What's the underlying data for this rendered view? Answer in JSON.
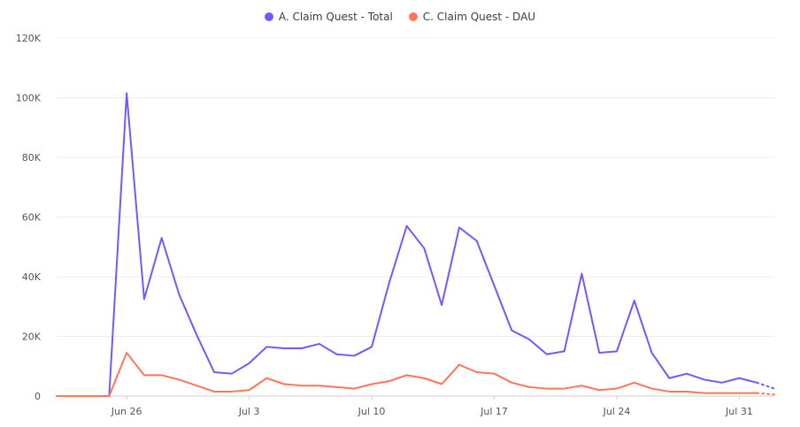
{
  "chart_data": {
    "type": "line",
    "title": "",
    "xlabel": "",
    "ylabel": "",
    "ylim": [
      0,
      120000
    ],
    "y_ticks": [
      0,
      20000,
      40000,
      60000,
      80000,
      100000,
      120000
    ],
    "y_tick_labels": [
      "0",
      "20K",
      "40K",
      "60K",
      "80K",
      "100K",
      "120K"
    ],
    "x_tick_labels": [
      "Jun 26",
      "Jul 3",
      "Jul 10",
      "Jul 17",
      "Jul 24",
      "Jul 31"
    ],
    "x_tick_dates": [
      "2023-06-26",
      "2023-07-03",
      "2023-07-10",
      "2023-07-17",
      "2023-07-24",
      "2023-07-31"
    ],
    "x": [
      "2023-06-22",
      "2023-06-23",
      "2023-06-24",
      "2023-06-25",
      "2023-06-26",
      "2023-06-27",
      "2023-06-28",
      "2023-06-29",
      "2023-06-30",
      "2023-07-01",
      "2023-07-02",
      "2023-07-03",
      "2023-07-04",
      "2023-07-05",
      "2023-07-06",
      "2023-07-07",
      "2023-07-08",
      "2023-07-09",
      "2023-07-10",
      "2023-07-11",
      "2023-07-12",
      "2023-07-13",
      "2023-07-14",
      "2023-07-15",
      "2023-07-16",
      "2023-07-17",
      "2023-07-18",
      "2023-07-19",
      "2023-07-20",
      "2023-07-21",
      "2023-07-22",
      "2023-07-23",
      "2023-07-24",
      "2023-07-25",
      "2023-07-26",
      "2023-07-27",
      "2023-07-28",
      "2023-07-29",
      "2023-07-30",
      "2023-07-31",
      "2023-08-01",
      "2023-08-02"
    ],
    "legend_position": "top-center",
    "grid": true,
    "series": [
      {
        "name": "A. Claim Quest - Total",
        "color": "#7856ff",
        "values": [
          0,
          0,
          0,
          0,
          101500,
          32500,
          53000,
          34000,
          20500,
          8000,
          7500,
          11000,
          16500,
          16000,
          16000,
          17500,
          14000,
          13500,
          16500,
          38000,
          57000,
          49500,
          30500,
          56500,
          52000,
          37000,
          22000,
          19000,
          14000,
          15000,
          41000,
          14500,
          15000,
          32000,
          14500,
          6000,
          7500,
          5500,
          4500,
          6000,
          4500,
          2500
        ],
        "dashed_last_segment": true
      },
      {
        "name": "C. Claim Quest - DAU",
        "color": "#ff7557",
        "values": [
          0,
          0,
          0,
          0,
          14500,
          7000,
          7000,
          5500,
          3500,
          1500,
          1500,
          2000,
          6000,
          4000,
          3500,
          3500,
          3000,
          2500,
          4000,
          5000,
          7000,
          6000,
          4000,
          10500,
          8000,
          7500,
          4500,
          3000,
          2500,
          2500,
          3500,
          2000,
          2500,
          4500,
          2500,
          1500,
          1500,
          1000,
          1000,
          1000,
          1000,
          500
        ],
        "dashed_last_segment": true
      }
    ]
  }
}
